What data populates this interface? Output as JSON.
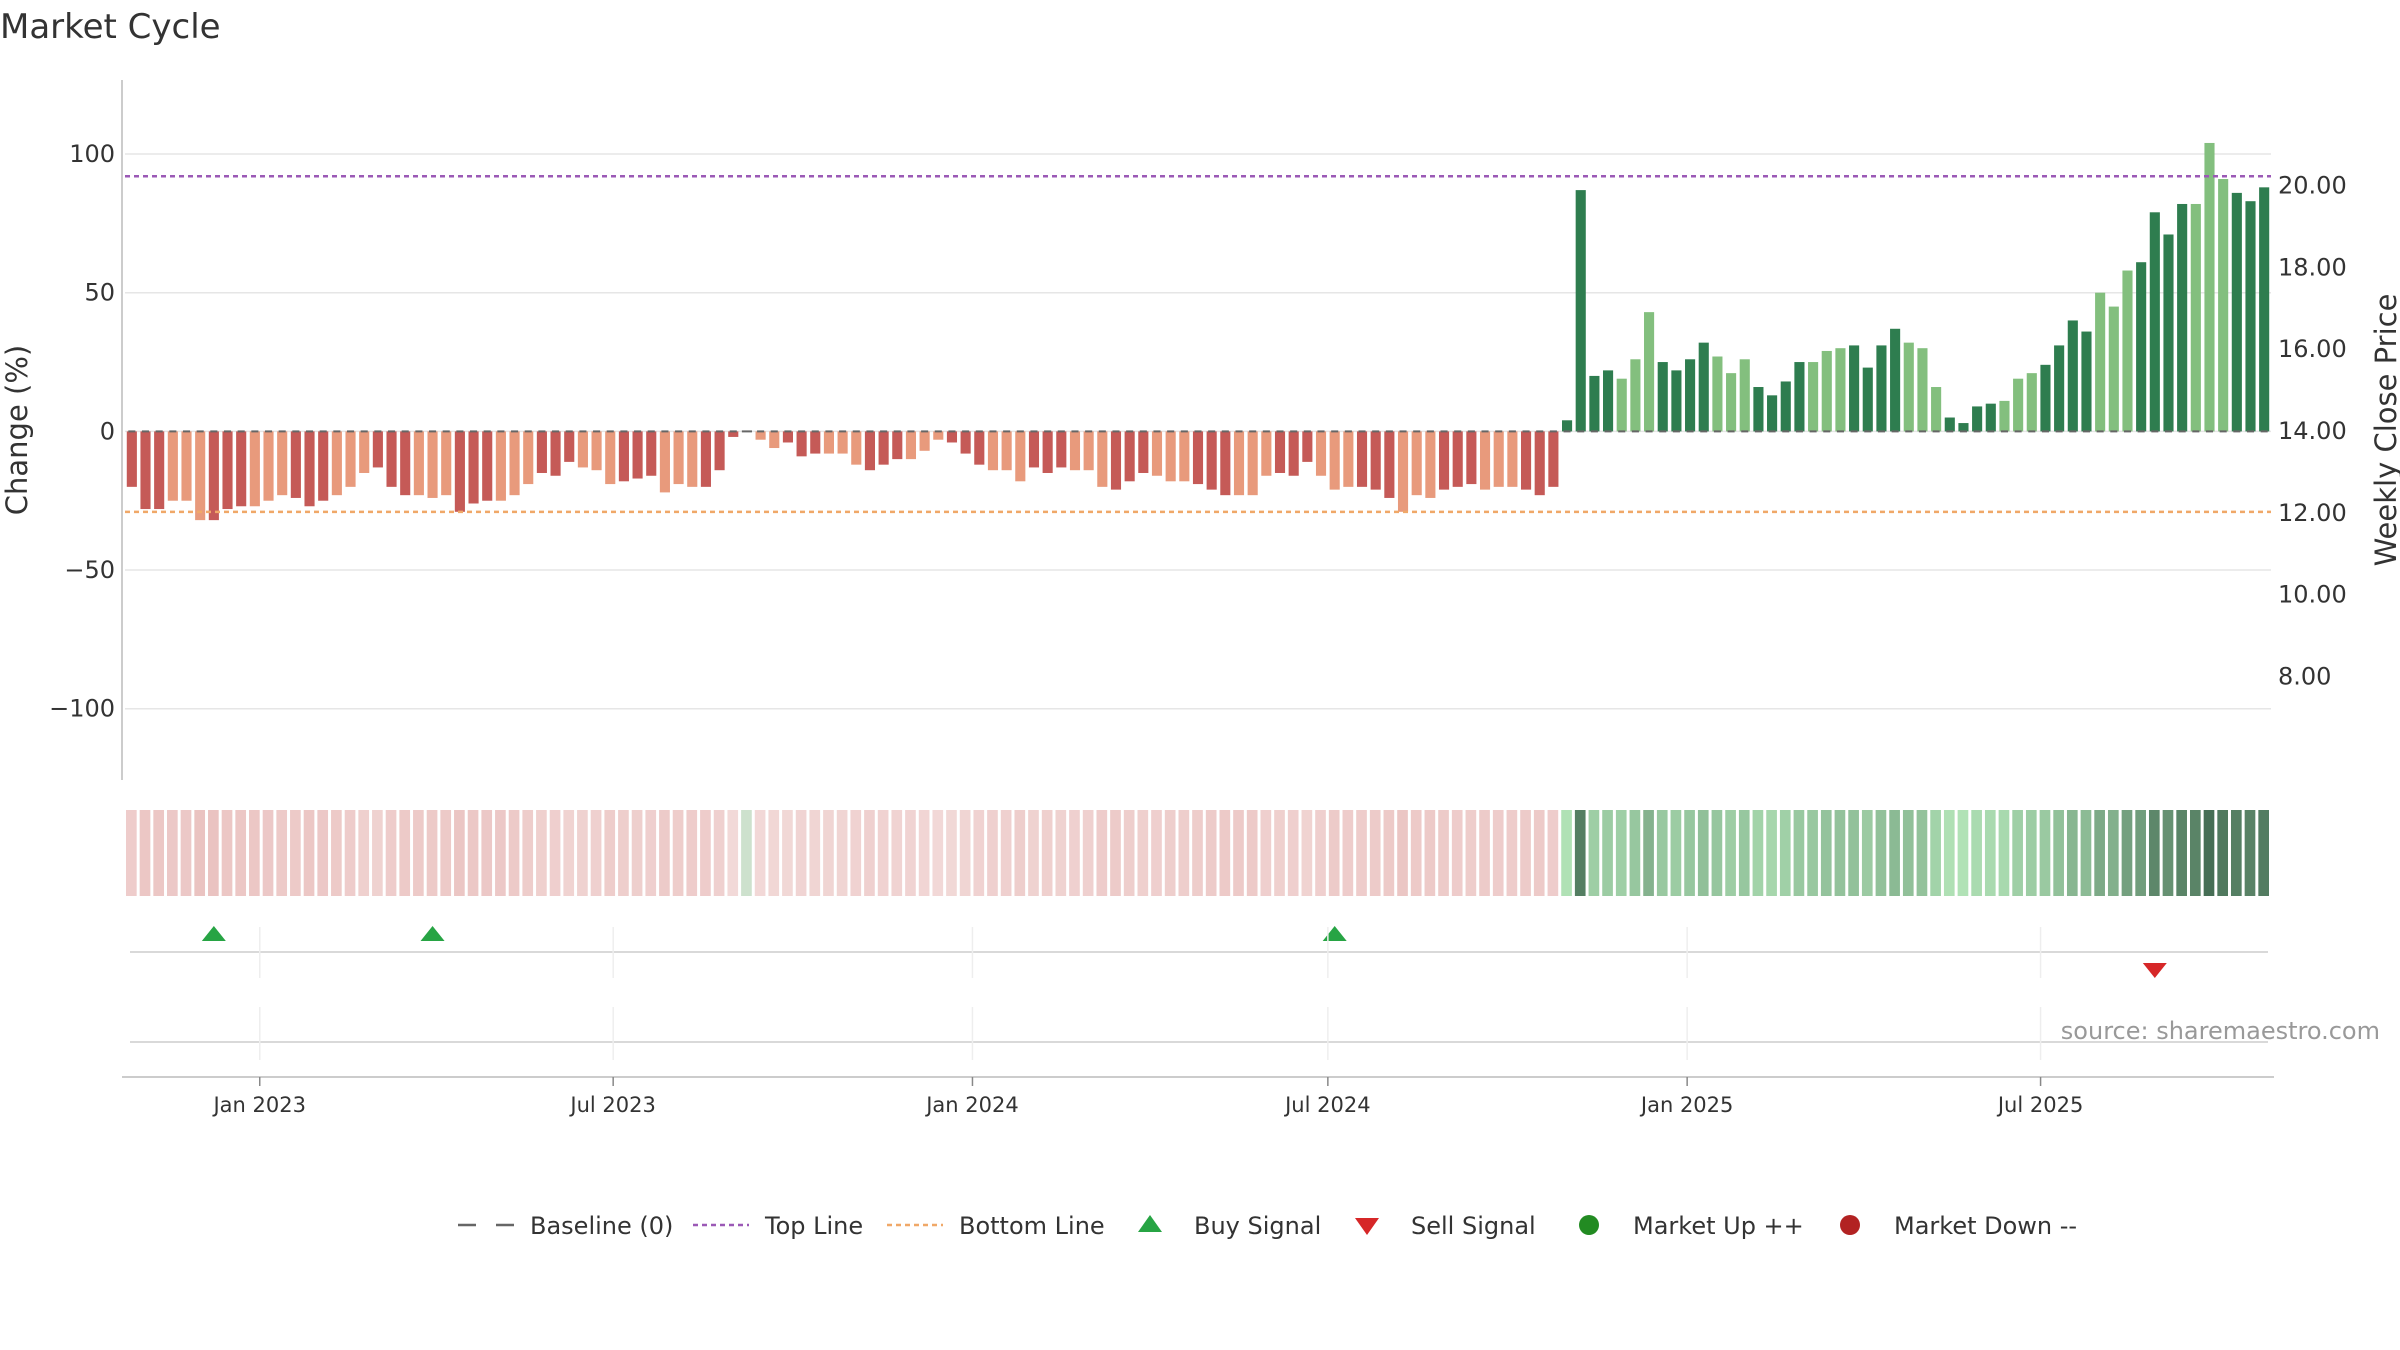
{
  "chart_data": {
    "type": "bar",
    "title": "Market Cycle",
    "ylabel": "Change (%)",
    "y2label": "Weekly Close Price",
    "ylim": [
      -112,
      113
    ],
    "y2lim": [
      6.4,
      21.65
    ],
    "yticks": [
      "100",
      "50",
      "0",
      "−50",
      "−100"
    ],
    "yticks_values": [
      100,
      50,
      0,
      -50,
      -100
    ],
    "y2ticks": [
      "20.00",
      "18.00",
      "16.00",
      "14.00",
      "12.00",
      "10.00",
      "8.00"
    ],
    "y2ticks_values": [
      20,
      18,
      16,
      14,
      12,
      10,
      8
    ],
    "xticks": [
      "Jan 2023",
      "Jul 2023",
      "Jan 2024",
      "Jul 2024",
      "Jan 2025",
      "Jul 2025"
    ],
    "xticks_dates": [
      "2023-01-01",
      "2023-07-01",
      "2024-01-01",
      "2024-07-01",
      "2025-01-01",
      "2025-07-01"
    ],
    "start_date": "2022-10-24",
    "week_values": [
      -20,
      -28,
      -28,
      -25,
      -25,
      -32,
      -32,
      -28,
      -27,
      -27,
      -25,
      -23,
      -24,
      -27,
      -25,
      -23,
      -20,
      -15,
      -13,
      -20,
      -23,
      -23,
      -24,
      -23,
      -29,
      -26,
      -25,
      -25,
      -23,
      -19,
      -15,
      -16,
      -11,
      -13,
      -14,
      -19,
      -18,
      -17,
      -16,
      -22,
      -19,
      -20,
      -20,
      -14,
      -2,
      0,
      -3,
      -6,
      -4,
      -9,
      -8,
      -8,
      -8,
      -12,
      -14,
      -12,
      -10,
      -10,
      -7,
      -3,
      -4,
      -8,
      -12,
      -14,
      -14,
      -18,
      -13,
      -15,
      -13,
      -14,
      -14,
      -20,
      -21,
      -18,
      -15,
      -16,
      -18,
      -18,
      -19,
      -21,
      -23,
      -23,
      -23,
      -16,
      -15,
      -16,
      -11,
      -16,
      -21,
      -20,
      -20,
      -21,
      -24,
      -29,
      -23,
      -24,
      -21,
      -20,
      -19,
      -21,
      -20,
      -20,
      -21,
      -23,
      -20,
      4,
      87,
      20,
      22,
      19,
      26,
      43,
      25,
      22,
      26,
      32,
      27,
      21,
      26,
      16,
      13,
      18,
      25,
      25,
      29,
      30,
      31,
      23,
      31,
      37,
      32,
      30,
      16,
      5,
      3,
      9,
      10,
      11,
      19,
      21,
      24,
      31,
      40,
      36,
      50,
      45,
      58,
      61,
      79,
      71,
      82,
      82,
      104,
      91,
      86,
      83,
      88
    ],
    "bar_colors": {
      "down_dark": "#c55a57",
      "down_light": "#e89a7c",
      "up_dark": "#2e7d4f",
      "up_light": "#83bf7e"
    },
    "reference_lines": {
      "top_line": 92,
      "bottom_line": -29,
      "baseline": 0
    },
    "signals": {
      "buy": [
        "2022-12-05",
        "2023-03-27",
        "2024-07-01"
      ],
      "sell": [
        "2025-08-25"
      ]
    },
    "source": "source: sharemaestro.com",
    "legend": [
      {
        "label": "Baseline (0)",
        "kind": "dash",
        "color": "#666666"
      },
      {
        "label": "Top Line",
        "kind": "dotted",
        "color": "#9b59b6"
      },
      {
        "label": "Bottom Line",
        "kind": "dotted",
        "color": "#f0a868"
      },
      {
        "label": "Buy Signal",
        "kind": "triangle-up",
        "color": "#27a444"
      },
      {
        "label": "Sell Signal",
        "kind": "triangle-down",
        "color": "#d62728"
      },
      {
        "label": "Market Up ++",
        "kind": "circle",
        "color": "#228b22"
      },
      {
        "label": "Market Down --",
        "kind": "circle",
        "color": "#b22222"
      }
    ]
  }
}
